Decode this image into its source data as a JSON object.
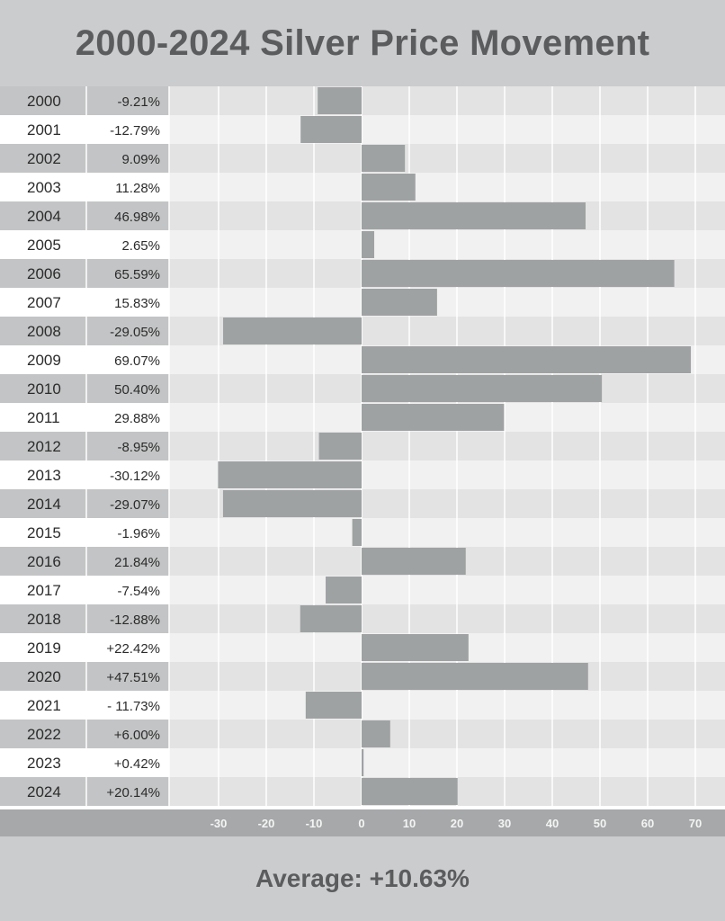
{
  "title": "2000-2024 Silver Price Movement",
  "average_label": "Average: +10.63%",
  "colors": {
    "bar": "#9fa2a3",
    "axis_band": "#a6a8a9",
    "row_dark": "#e3e3e3",
    "row_light": "#f1f1f1",
    "label_dark": "#c3c4c5",
    "label_light": "#ffffff"
  },
  "chart_data": {
    "type": "bar",
    "orientation": "horizontal",
    "title": "2000-2024 Silver Price Movement",
    "categories": [
      "2000",
      "2001",
      "2002",
      "2003",
      "2004",
      "2005",
      "2006",
      "2007",
      "2008",
      "2009",
      "2010",
      "2011",
      "2012",
      "2013",
      "2014",
      "2015",
      "2016",
      "2017",
      "2018",
      "2019",
      "2020",
      "2021",
      "2022",
      "2023",
      "2024"
    ],
    "values": [
      -9.21,
      -12.79,
      9.09,
      11.28,
      46.98,
      2.65,
      65.59,
      15.83,
      -29.05,
      69.07,
      50.4,
      29.88,
      -8.95,
      -30.12,
      -29.07,
      -1.96,
      21.84,
      -7.54,
      -12.88,
      22.42,
      47.51,
      -11.73,
      6.0,
      0.42,
      20.14
    ],
    "value_labels": [
      "-9.21%",
      "-12.79%",
      "9.09%",
      "11.28%",
      "46.98%",
      "2.65%",
      "65.59%",
      "15.83%",
      "-29.05%",
      "69.07%",
      "50.40%",
      "29.88%",
      "-8.95%",
      "-30.12%",
      "-29.07%",
      "-1.96%",
      "21.84%",
      "-7.54%",
      "-12.88%",
      "+22.42%",
      "+47.51%",
      "- 11.73%",
      "+6.00%",
      "+0.42%",
      "+20.14%"
    ],
    "x_ticks": [
      -30,
      -20,
      -10,
      0,
      10,
      20,
      30,
      40,
      50,
      60,
      70
    ],
    "xlim": [
      -40,
      75
    ],
    "grid": true,
    "legend": "none"
  }
}
